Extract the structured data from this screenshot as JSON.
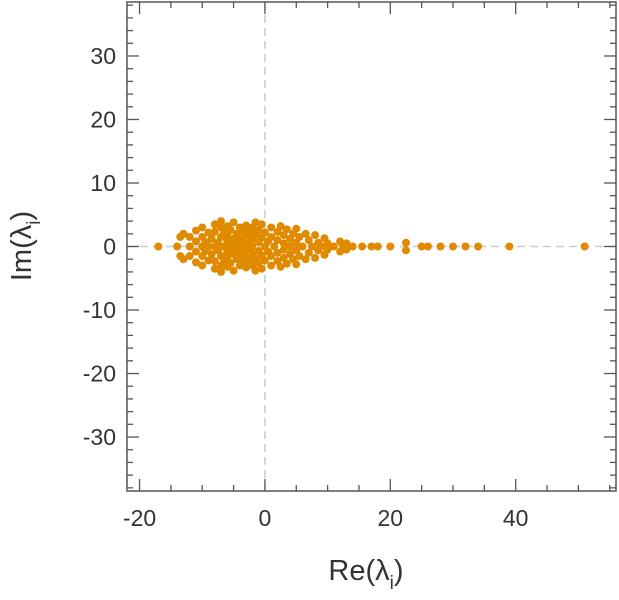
{
  "chart_data": {
    "type": "scatter",
    "title": "",
    "xlabel": {
      "main": "Re(λ",
      "sub": "i",
      "close": ")"
    },
    "ylabel": {
      "main": "Im(λ",
      "sub": "i",
      "close": ")"
    },
    "xlim": [
      -22,
      56
    ],
    "ylim": [
      -38.5,
      38.5
    ],
    "x_ticks": [
      -20,
      0,
      20,
      40
    ],
    "x_tick_labels": [
      "-20",
      "0",
      "20",
      "40"
    ],
    "y_ticks": [
      30,
      20,
      10,
      0,
      -10,
      -20,
      -30
    ],
    "y_tick_labels": [
      "30",
      "20",
      "10",
      "0",
      "-10",
      "-20",
      "-30"
    ],
    "x_minor_step": 5,
    "y_minor_step": 2,
    "grid": false,
    "legend": "none",
    "reference_lines": [
      "x=0",
      "y=0"
    ],
    "marker_color": "#e08a00",
    "reference_line_color": "#cccccc",
    "series": [
      {
        "points": [
          [
            -17,
            0
          ],
          [
            -14,
            0
          ],
          [
            -13.5,
            1.5
          ],
          [
            -13.5,
            -1.5
          ],
          [
            -13,
            2
          ],
          [
            -13,
            -2
          ],
          [
            -12,
            0
          ],
          [
            -12,
            1.5
          ],
          [
            -12,
            -1.5
          ],
          [
            -11,
            0.8
          ],
          [
            -11,
            -0.8
          ],
          [
            -11,
            2.5
          ],
          [
            -11,
            -2.5
          ],
          [
            -10,
            0
          ],
          [
            -10,
            1.5
          ],
          [
            -10,
            -1.5
          ],
          [
            -10,
            3
          ],
          [
            -10,
            -3
          ],
          [
            -9.5,
            0.7
          ],
          [
            -9.5,
            -0.7
          ],
          [
            -9,
            2.2
          ],
          [
            -9,
            -2.2
          ],
          [
            -9,
            0
          ],
          [
            -8.5,
            1.2
          ],
          [
            -8.5,
            -1.2
          ],
          [
            -8,
            3.5
          ],
          [
            -8,
            -3.5
          ],
          [
            -8,
            0
          ],
          [
            -8,
            2.3
          ],
          [
            -8,
            -2.3
          ],
          [
            -7.5,
            0.6
          ],
          [
            -7.5,
            -0.6
          ],
          [
            -7,
            1.5
          ],
          [
            -7,
            -1.5
          ],
          [
            -7,
            3
          ],
          [
            -7,
            -3
          ],
          [
            -7,
            4
          ],
          [
            -7,
            -4
          ],
          [
            -6.5,
            0
          ],
          [
            -6.5,
            2.3
          ],
          [
            -6.5,
            -2.3
          ],
          [
            -6,
            0.8
          ],
          [
            -6,
            -0.8
          ],
          [
            -6,
            1.8
          ],
          [
            -6,
            -1.8
          ],
          [
            -6,
            3.2
          ],
          [
            -6,
            -3.2
          ],
          [
            -5.5,
            0.3
          ],
          [
            -5.5,
            -0.3
          ],
          [
            -5.5,
            2.6
          ],
          [
            -5.5,
            -2.6
          ],
          [
            -5,
            1.2
          ],
          [
            -5,
            -1.2
          ],
          [
            -5,
            0
          ],
          [
            -5,
            3.8
          ],
          [
            -5,
            -3.8
          ],
          [
            -4.5,
            2
          ],
          [
            -4.5,
            -2
          ],
          [
            -4.5,
            0.6
          ],
          [
            -4.5,
            -0.6
          ],
          [
            -4,
            1.5
          ],
          [
            -4,
            -1.5
          ],
          [
            -4,
            3
          ],
          [
            -4,
            -3
          ],
          [
            -4,
            0
          ],
          [
            -3.5,
            2.5
          ],
          [
            -3.5,
            -2.5
          ],
          [
            -3.5,
            0.9
          ],
          [
            -3.5,
            -0.9
          ],
          [
            -3,
            1.7
          ],
          [
            -3,
            -1.7
          ],
          [
            -3,
            0
          ],
          [
            -3,
            3.3
          ],
          [
            -3,
            -3.3
          ],
          [
            -2.5,
            0.5
          ],
          [
            -2.5,
            -0.5
          ],
          [
            -2.5,
            2.2
          ],
          [
            -2.5,
            -2.2
          ],
          [
            -2,
            1.2
          ],
          [
            -2,
            -1.2
          ],
          [
            -2,
            3
          ],
          [
            -2,
            -3
          ],
          [
            -2,
            0
          ],
          [
            -1.5,
            1.9
          ],
          [
            -1.5,
            -1.9
          ],
          [
            -1.5,
            3.8
          ],
          [
            -1.5,
            -3.8
          ],
          [
            -1,
            0.7
          ],
          [
            -1,
            -0.7
          ],
          [
            -1,
            2.6
          ],
          [
            -1,
            -2.6
          ],
          [
            -0.5,
            3.5
          ],
          [
            -0.5,
            -3.5
          ],
          [
            -0.5,
            1.4
          ],
          [
            -0.5,
            -1.4
          ],
          [
            0,
            0
          ],
          [
            0,
            2.2
          ],
          [
            0,
            -2.2
          ],
          [
            0.5,
            0.8
          ],
          [
            0.5,
            -0.8
          ],
          [
            1,
            1.5
          ],
          [
            1,
            -1.5
          ],
          [
            1,
            3
          ],
          [
            1,
            -3
          ],
          [
            1.5,
            0
          ],
          [
            2,
            2.3
          ],
          [
            2,
            -2.3
          ],
          [
            2,
            1
          ],
          [
            2,
            -1
          ],
          [
            2.5,
            3.2
          ],
          [
            2.5,
            -3.2
          ],
          [
            3,
            0.5
          ],
          [
            3,
            -0.5
          ],
          [
            3,
            1.8
          ],
          [
            3,
            -1.8
          ],
          [
            3.5,
            2.7
          ],
          [
            3.5,
            -2.7
          ],
          [
            4,
            0
          ],
          [
            4,
            1.2
          ],
          [
            4,
            -1.2
          ],
          [
            4.5,
            2
          ],
          [
            4.5,
            -2
          ],
          [
            5,
            0.6
          ],
          [
            5,
            -0.6
          ],
          [
            5,
            2.8
          ],
          [
            5,
            -2.8
          ],
          [
            5.5,
            1.5
          ],
          [
            5.5,
            -1.5
          ],
          [
            6,
            0
          ],
          [
            6.5,
            2
          ],
          [
            6.5,
            -2
          ],
          [
            7,
            1
          ],
          [
            7,
            -1
          ],
          [
            7.5,
            0
          ],
          [
            8,
            1.8
          ],
          [
            8,
            -1.8
          ],
          [
            8.5,
            0.6
          ],
          [
            8.5,
            -0.6
          ],
          [
            9,
            0
          ],
          [
            9.5,
            1.3
          ],
          [
            9.5,
            -1.3
          ],
          [
            10,
            0.5
          ],
          [
            10,
            -0.5
          ],
          [
            11,
            0
          ],
          [
            12,
            0.8
          ],
          [
            12,
            -0.8
          ],
          [
            12.5,
            0
          ],
          [
            13,
            0.5
          ],
          [
            13,
            -0.5
          ],
          [
            14,
            0
          ],
          [
            15.5,
            0
          ],
          [
            17,
            0
          ],
          [
            18,
            0
          ],
          [
            20,
            0
          ],
          [
            22.5,
            0.6
          ],
          [
            22.5,
            -0.6
          ],
          [
            25,
            0
          ],
          [
            26,
            0
          ],
          [
            28,
            0
          ],
          [
            30,
            0
          ],
          [
            32,
            0
          ],
          [
            34,
            0
          ],
          [
            39,
            0
          ],
          [
            51,
            0
          ]
        ]
      }
    ]
  }
}
